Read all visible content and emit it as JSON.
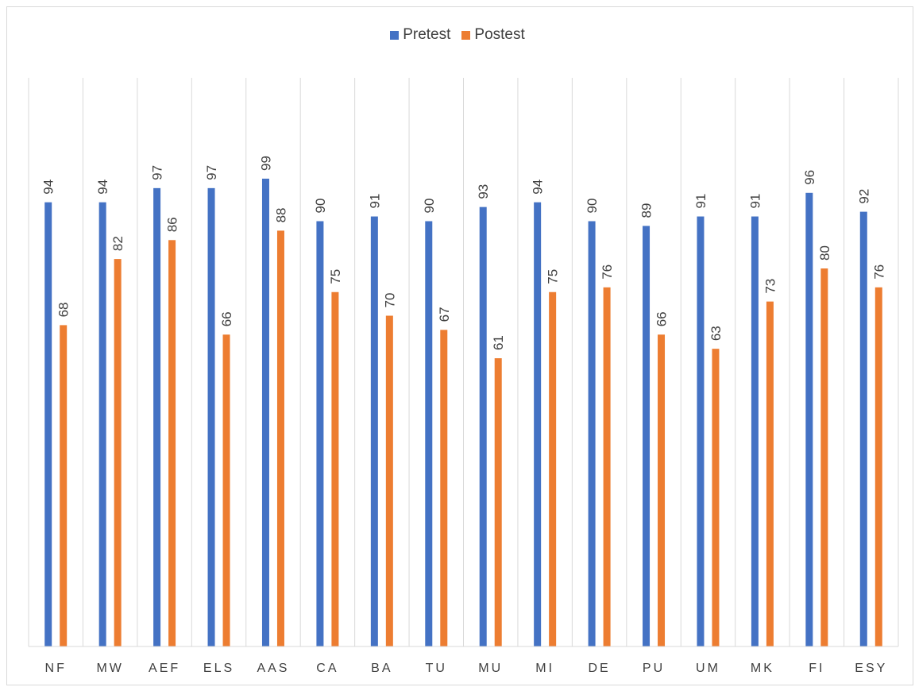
{
  "chart_data": {
    "type": "bar",
    "categories": [
      "NF",
      "MW",
      "AEF",
      "ELS",
      "AAS",
      "CA",
      "BA",
      "TU",
      "MU",
      "MI",
      "DE",
      "PU",
      "UM",
      "MK",
      "FI",
      "ESY"
    ],
    "series": [
      {
        "name": "Pretest",
        "color": "#4472c4",
        "values": [
          94,
          94,
          97,
          97,
          99,
          90,
          91,
          90,
          93,
          94,
          90,
          89,
          91,
          91,
          96,
          92
        ]
      },
      {
        "name": "Postest",
        "color": "#ed7d31",
        "values": [
          68,
          82,
          86,
          66,
          88,
          75,
          70,
          67,
          61,
          75,
          76,
          66,
          63,
          73,
          80,
          76
        ]
      }
    ],
    "title": "",
    "xlabel": "",
    "ylabel": "",
    "ylim": [
      0,
      120
    ],
    "grid": "vertical",
    "legend": "top-center",
    "data_labels": "rotated"
  }
}
